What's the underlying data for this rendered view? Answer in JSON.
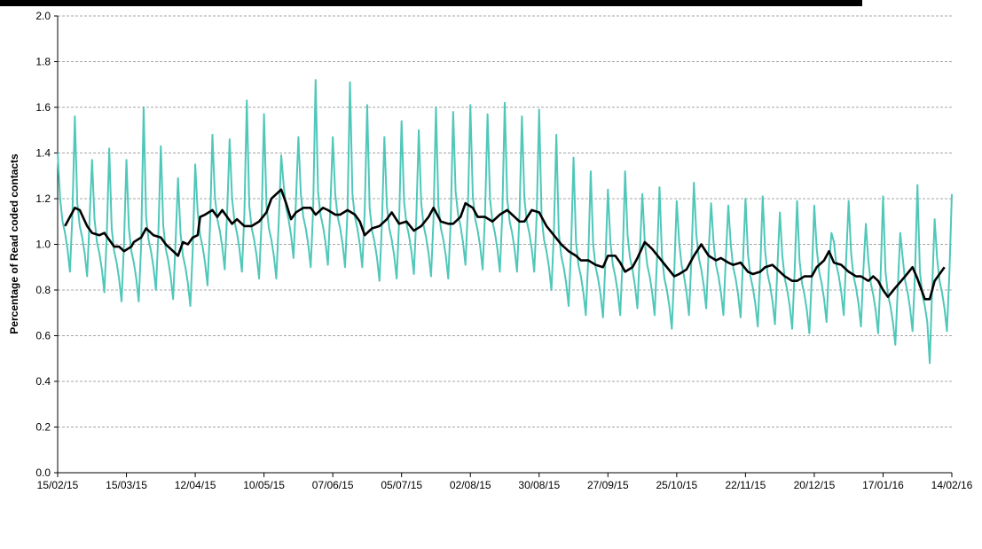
{
  "chart_data": {
    "type": "line",
    "y_label": "Percentage of Read coded contacts",
    "xlim": [
      0,
      364
    ],
    "ylim": [
      0,
      2
    ],
    "xticks": [
      {
        "value": 0,
        "label": "15/02/15"
      },
      {
        "value": 28,
        "label": "15/03/15"
      },
      {
        "value": 56,
        "label": "12/04/15"
      },
      {
        "value": 84,
        "label": "10/05/15"
      },
      {
        "value": 112,
        "label": "07/06/15"
      },
      {
        "value": 140,
        "label": "05/07/15"
      },
      {
        "value": 168,
        "label": "02/08/15"
      },
      {
        "value": 196,
        "label": "30/08/15"
      },
      {
        "value": 224,
        "label": "27/09/15"
      },
      {
        "value": 252,
        "label": "25/10/15"
      },
      {
        "value": 280,
        "label": "22/11/15"
      },
      {
        "value": 308,
        "label": "20/12/15"
      },
      {
        "value": 336,
        "label": "17/01/16"
      },
      {
        "value": 364,
        "label": "14/02/16"
      }
    ],
    "yticks": [
      {
        "value": 0,
        "label": "0.0"
      },
      {
        "value": 0.2,
        "label": "0.2"
      },
      {
        "value": 0.4,
        "label": "0.4"
      },
      {
        "value": 0.6,
        "label": "0.6"
      },
      {
        "value": 0.8,
        "label": "0.8"
      },
      {
        "value": 1,
        "label": "1.0"
      },
      {
        "value": 1.2,
        "label": "1.2"
      },
      {
        "value": 1.4,
        "label": "1.4"
      },
      {
        "value": 1.6,
        "label": "1.6"
      },
      {
        "value": 1.8,
        "label": "1.8"
      },
      {
        "value": 2,
        "label": "2.0"
      }
    ],
    "grid": true,
    "x": [
      0,
      1,
      2,
      3,
      4,
      5,
      6,
      7,
      8,
      9,
      10,
      11,
      12,
      13,
      14,
      15,
      16,
      17,
      18,
      19,
      20,
      21,
      22,
      23,
      24,
      25,
      26,
      27,
      28,
      29,
      30,
      31,
      32,
      33,
      34,
      35,
      36,
      37,
      38,
      39,
      40,
      41,
      42,
      43,
      44,
      45,
      46,
      47,
      48,
      49,
      50,
      51,
      52,
      53,
      54,
      55,
      56,
      57,
      58,
      59,
      60,
      61,
      62,
      63,
      64,
      65,
      66,
      67,
      68,
      69,
      70,
      71,
      72,
      73,
      74,
      75,
      76,
      77,
      78,
      79,
      80,
      81,
      82,
      83,
      84,
      85,
      86,
      87,
      88,
      89,
      90,
      91,
      92,
      93,
      94,
      95,
      96,
      97,
      98,
      99,
      100,
      101,
      102,
      103,
      104,
      105,
      106,
      107,
      108,
      109,
      110,
      111,
      112,
      113,
      114,
      115,
      116,
      117,
      118,
      119,
      120,
      121,
      122,
      123,
      124,
      125,
      126,
      127,
      128,
      129,
      130,
      131,
      132,
      133,
      134,
      135,
      136,
      137,
      138,
      139,
      140,
      141,
      142,
      143,
      144,
      145,
      146,
      147,
      148,
      149,
      150,
      151,
      152,
      153,
      154,
      155,
      156,
      157,
      158,
      159,
      160,
      161,
      162,
      163,
      164,
      165,
      166,
      167,
      168,
      169,
      170,
      171,
      172,
      173,
      174,
      175,
      176,
      177,
      178,
      179,
      180,
      181,
      182,
      183,
      184,
      185,
      186,
      187,
      188,
      189,
      190,
      191,
      192,
      193,
      194,
      195,
      196,
      197,
      198,
      199,
      200,
      201,
      202,
      203,
      204,
      205,
      206,
      207,
      208,
      209,
      210,
      211,
      212,
      213,
      214,
      215,
      216,
      217,
      218,
      219,
      220,
      221,
      222,
      223,
      224,
      225,
      226,
      227,
      228,
      229,
      230,
      231,
      232,
      233,
      234,
      235,
      236,
      237,
      238,
      239,
      240,
      241,
      242,
      243,
      244,
      245,
      246,
      247,
      248,
      249,
      250,
      251,
      252,
      253,
      254,
      255,
      256,
      257,
      258,
      259,
      260,
      261,
      262,
      263,
      264,
      265,
      266,
      267,
      268,
      269,
      270,
      271,
      272,
      273,
      274,
      275,
      276,
      277,
      278,
      279,
      280,
      281,
      282,
      283,
      284,
      285,
      286,
      287,
      288,
      289,
      290,
      291,
      292,
      293,
      294,
      295,
      296,
      297,
      298,
      299,
      300,
      301,
      302,
      303,
      304,
      305,
      306,
      307,
      308,
      309,
      310,
      311,
      312,
      313,
      314,
      315,
      316,
      317,
      318,
      319,
      320,
      321,
      322,
      323,
      324,
      325,
      326,
      327,
      328,
      329,
      330,
      331,
      332,
      333,
      334,
      335,
      336,
      337,
      338,
      339,
      340,
      341,
      342,
      343,
      344,
      345,
      346,
      347,
      348,
      349,
      350,
      351,
      352,
      353,
      354,
      355,
      356,
      357,
      358,
      359,
      360,
      361,
      362,
      363,
      364
    ],
    "series": [
      {
        "color": "#4fc7b9",
        "values": [
          1.4,
          1.2,
          1.1,
          1.05,
          0.98,
          0.88,
          1.13,
          1.56,
          1.18,
          1.08,
          1.03,
          0.96,
          0.86,
          1.11,
          1.37,
          1.11,
          1.01,
          0.96,
          0.89,
          0.79,
          1.04,
          1.42,
          1.07,
          0.97,
          0.92,
          0.85,
          0.75,
          1.0,
          1.37,
          1.07,
          0.97,
          0.92,
          0.85,
          0.75,
          1.0,
          1.6,
          1.12,
          1.02,
          0.97,
          0.9,
          0.8,
          1.05,
          1.43,
          1.08,
          0.98,
          0.93,
          0.86,
          0.76,
          1.01,
          1.29,
          1.05,
          0.95,
          0.9,
          0.83,
          0.73,
          0.98,
          1.35,
          1.14,
          1.04,
          0.99,
          0.92,
          0.82,
          1.07,
          1.48,
          1.21,
          1.11,
          1.06,
          0.99,
          0.89,
          1.14,
          1.46,
          1.2,
          1.1,
          1.05,
          0.98,
          0.88,
          1.13,
          1.63,
          1.17,
          1.07,
          1.02,
          0.95,
          0.85,
          1.1,
          1.57,
          1.17,
          1.07,
          1.02,
          0.95,
          0.85,
          1.1,
          1.39,
          1.26,
          1.16,
          1.11,
          1.04,
          0.94,
          1.19,
          1.47,
          1.22,
          1.12,
          1.07,
          1.0,
          0.9,
          1.15,
          1.72,
          1.23,
          1.13,
          1.08,
          1.01,
          0.91,
          1.16,
          1.47,
          1.22,
          1.12,
          1.07,
          1.0,
          0.9,
          1.15,
          1.71,
          1.22,
          1.12,
          1.07,
          1.0,
          0.9,
          1.15,
          1.61,
          1.16,
          1.06,
          1.01,
          0.94,
          0.84,
          1.09,
          1.47,
          1.17,
          1.07,
          1.02,
          0.95,
          0.85,
          1.1,
          1.54,
          1.19,
          1.09,
          1.04,
          0.97,
          0.87,
          1.12,
          1.5,
          1.18,
          1.08,
          1.03,
          0.96,
          0.86,
          1.11,
          1.6,
          1.17,
          1.07,
          1.02,
          0.95,
          0.85,
          1.1,
          1.58,
          1.23,
          1.13,
          1.08,
          1.01,
          0.91,
          1.16,
          1.61,
          1.21,
          1.11,
          1.06,
          0.99,
          0.89,
          1.14,
          1.57,
          1.2,
          1.1,
          1.05,
          0.98,
          0.88,
          1.13,
          1.62,
          1.2,
          1.1,
          1.05,
          0.98,
          0.88,
          1.13,
          1.56,
          1.2,
          1.1,
          1.05,
          0.98,
          0.88,
          1.13,
          1.59,
          1.12,
          1.02,
          0.97,
          0.9,
          0.8,
          1.05,
          1.48,
          1.05,
          0.95,
          0.9,
          0.83,
          0.73,
          0.98,
          1.38,
          1.01,
          0.91,
          0.86,
          0.79,
          0.69,
          0.94,
          1.32,
          1.0,
          0.9,
          0.85,
          0.78,
          0.68,
          0.93,
          1.24,
          1.01,
          0.91,
          0.86,
          0.79,
          0.69,
          0.94,
          1.32,
          1.04,
          0.94,
          0.89,
          0.82,
          0.72,
          0.97,
          1.22,
          1.01,
          0.91,
          0.86,
          0.79,
          0.69,
          0.94,
          1.25,
          0.95,
          0.85,
          0.8,
          0.73,
          0.63,
          0.88,
          1.19,
          1.01,
          0.91,
          0.86,
          0.79,
          0.69,
          0.94,
          1.27,
          1.04,
          0.94,
          0.89,
          0.82,
          0.72,
          0.97,
          1.18,
          1.01,
          0.91,
          0.86,
          0.79,
          0.69,
          0.94,
          1.17,
          1.0,
          0.9,
          0.85,
          0.78,
          0.68,
          0.93,
          1.2,
          0.96,
          0.86,
          0.81,
          0.74,
          0.64,
          0.89,
          1.21,
          0.97,
          0.87,
          0.82,
          0.75,
          0.65,
          0.9,
          1.14,
          0.95,
          0.85,
          0.8,
          0.73,
          0.63,
          0.88,
          1.19,
          0.93,
          0.83,
          0.78,
          0.71,
          0.61,
          0.86,
          1.17,
          0.98,
          0.88,
          0.83,
          0.76,
          0.66,
          0.91,
          1.05,
          1.01,
          0.91,
          0.86,
          0.79,
          0.69,
          0.94,
          1.19,
          0.96,
          0.86,
          0.81,
          0.74,
          0.64,
          0.89,
          1.09,
          0.93,
          0.83,
          0.78,
          0.71,
          0.61,
          0.86,
          1.21,
          0.88,
          0.78,
          0.73,
          0.66,
          0.56,
          0.81,
          1.05,
          0.94,
          0.84,
          0.79,
          0.72,
          0.62,
          0.87,
          1.26,
          0.88,
          0.78,
          0.73,
          0.66,
          0.48,
          0.81,
          1.11,
          0.94,
          0.84,
          0.79,
          0.72,
          0.62,
          0.87,
          1.22
        ]
      },
      {
        "color": "#000000",
        "x": [
          3,
          7,
          9,
          12,
          14,
          17,
          19,
          21,
          23,
          25,
          27,
          30,
          31,
          34,
          36,
          39,
          42,
          44,
          47,
          49,
          51,
          53,
          55,
          57,
          58,
          60,
          63,
          65,
          67,
          69,
          71,
          73,
          76,
          79,
          82,
          85,
          87,
          91,
          93,
          95,
          97,
          100,
          103,
          105,
          108,
          110,
          113,
          115,
          118,
          121,
          123,
          125,
          128,
          131,
          134,
          136,
          139,
          142,
          145,
          148,
          151,
          153,
          156,
          159,
          161,
          164,
          166,
          169,
          171,
          174,
          177,
          180,
          183,
          186,
          188,
          190,
          193,
          196,
          199,
          202,
          205,
          208,
          211,
          213,
          216,
          219,
          222,
          224,
          227,
          229,
          231,
          234,
          236,
          239,
          242,
          245,
          248,
          251,
          253,
          256,
          259,
          262,
          265,
          268,
          270,
          273,
          275,
          278,
          281,
          283,
          286,
          288,
          291,
          294,
          296,
          299,
          301,
          304,
          307,
          309,
          312,
          314,
          316,
          319,
          322,
          325,
          327,
          330,
          332,
          334,
          336,
          338,
          341,
          345,
          348,
          350,
          353,
          355,
          357,
          359,
          361
        ],
        "values": [
          1.08,
          1.16,
          1.15,
          1.08,
          1.05,
          1.04,
          1.05,
          1.02,
          0.99,
          0.99,
          0.97,
          0.99,
          1.01,
          1.03,
          1.07,
          1.04,
          1.03,
          1.0,
          0.97,
          0.95,
          1.01,
          1.0,
          1.03,
          1.04,
          1.12,
          1.13,
          1.15,
          1.12,
          1.15,
          1.12,
          1.09,
          1.11,
          1.08,
          1.08,
          1.1,
          1.14,
          1.2,
          1.24,
          1.18,
          1.11,
          1.14,
          1.16,
          1.16,
          1.13,
          1.16,
          1.15,
          1.13,
          1.13,
          1.15,
          1.13,
          1.1,
          1.04,
          1.07,
          1.08,
          1.11,
          1.14,
          1.09,
          1.1,
          1.06,
          1.08,
          1.12,
          1.16,
          1.1,
          1.09,
          1.09,
          1.12,
          1.18,
          1.16,
          1.12,
          1.12,
          1.1,
          1.13,
          1.15,
          1.12,
          1.1,
          1.1,
          1.15,
          1.14,
          1.08,
          1.04,
          1.0,
          0.97,
          0.95,
          0.93,
          0.93,
          0.91,
          0.9,
          0.95,
          0.95,
          0.92,
          0.88,
          0.9,
          0.94,
          1.01,
          0.98,
          0.94,
          0.9,
          0.86,
          0.87,
          0.89,
          0.95,
          1.0,
          0.95,
          0.93,
          0.94,
          0.92,
          0.91,
          0.92,
          0.88,
          0.87,
          0.88,
          0.9,
          0.91,
          0.88,
          0.86,
          0.84,
          0.84,
          0.86,
          0.86,
          0.9,
          0.93,
          0.97,
          0.92,
          0.91,
          0.88,
          0.86,
          0.86,
          0.84,
          0.86,
          0.84,
          0.8,
          0.77,
          0.81,
          0.86,
          0.9,
          0.85,
          0.76,
          0.76,
          0.84,
          0.87,
          0.9
        ]
      }
    ]
  }
}
